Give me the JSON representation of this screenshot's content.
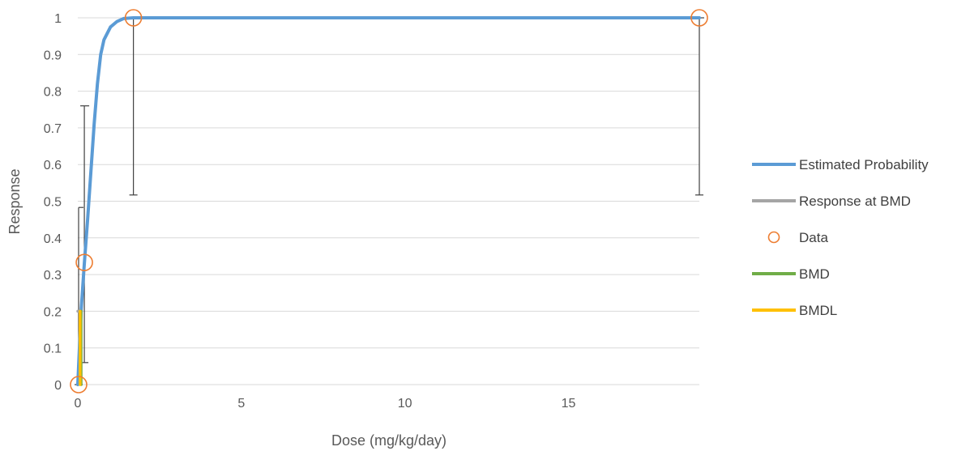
{
  "chart_data": {
    "type": "scatter",
    "title": "",
    "xlabel": "Dose (mg/kg/day)",
    "ylabel": "Response",
    "xlim": [
      0,
      19
    ],
    "ylim": [
      0,
      1
    ],
    "x_ticks": [
      0,
      5,
      10,
      15
    ],
    "x_tick_labels": [
      "0",
      "5",
      "10",
      "15"
    ],
    "y_ticks": [
      0,
      0.1,
      0.2,
      0.3,
      0.4,
      0.5,
      0.6,
      0.7,
      0.8,
      0.9,
      1
    ],
    "y_tick_labels": [
      "0",
      "0.1",
      "0.2",
      "0.3",
      "0.4",
      "0.5",
      "0.6",
      "0.7",
      "0.8",
      "0.9",
      "1"
    ],
    "grid": "horizontal",
    "legend_position": "right",
    "series": [
      {
        "name": "Estimated Probability",
        "kind": "line",
        "color": "#5B9BD5",
        "x": [
          0,
          0.1,
          0.2,
          0.3,
          0.4,
          0.5,
          0.6,
          0.7,
          0.8,
          1.0,
          1.2,
          1.4,
          1.7,
          19
        ],
        "y": [
          0,
          0.2,
          0.33,
          0.45,
          0.58,
          0.71,
          0.82,
          0.9,
          0.94,
          0.975,
          0.99,
          0.998,
          1,
          1
        ]
      },
      {
        "name": "Response at BMD",
        "kind": "line",
        "color": "#A5A5A5",
        "x": [
          0,
          0.1
        ],
        "y": [
          0.2,
          0.2
        ]
      },
      {
        "name": "Data",
        "kind": "marker",
        "color": "#ED7D31",
        "x": [
          0,
          0.2,
          1.7,
          19
        ],
        "y": [
          0,
          0.333,
          1,
          1
        ],
        "error_lower": [
          0,
          0.06,
          0.517,
          0.517
        ],
        "error_upper": [
          0.483,
          0.76,
          1,
          1
        ]
      },
      {
        "name": "BMD",
        "kind": "line",
        "color": "#70AD47",
        "x": [
          0.1,
          0.1
        ],
        "y": [
          0,
          0.2
        ]
      },
      {
        "name": "BMDL",
        "kind": "line",
        "color": "#FFC000",
        "x": [
          0.07,
          0.07
        ],
        "y": [
          0,
          0.2
        ]
      }
    ]
  }
}
